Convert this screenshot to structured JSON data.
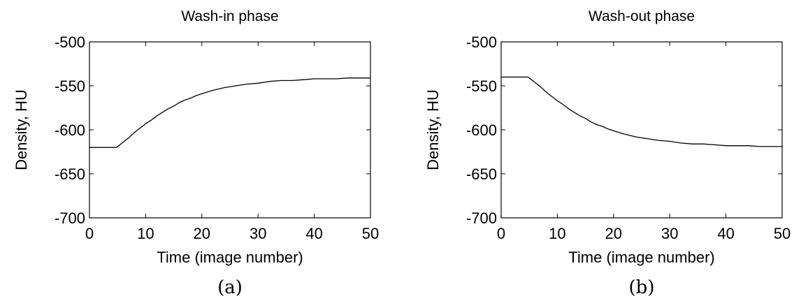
{
  "chart_data": [
    {
      "type": "line",
      "title": "Wash-in phase",
      "xlabel": "Time (image number)",
      "ylabel": "Density, HU",
      "caption": "(a)",
      "xlim": [
        0,
        50
      ],
      "ylim": [
        -700,
        -500
      ],
      "xticks": [
        "0",
        "10",
        "20",
        "30",
        "40",
        "50"
      ],
      "yticks": [
        "-500",
        "-550",
        "-600",
        "-650",
        "-700"
      ],
      "grid": false,
      "series": [
        {
          "x": [
            0,
            4.8,
            6,
            7,
            8,
            9,
            10,
            11,
            12,
            13,
            14,
            15,
            16,
            17,
            18,
            19,
            20,
            22,
            24,
            26,
            28,
            30,
            32,
            34,
            36,
            38,
            40,
            42,
            44,
            46,
            48,
            50
          ],
          "values": [
            -620,
            -620,
            -614,
            -609,
            -603,
            -598,
            -593,
            -589,
            -584,
            -580,
            -576,
            -573,
            -569,
            -566,
            -564,
            -561,
            -559,
            -555,
            -552,
            -550,
            -548,
            -547,
            -545,
            -544,
            -544,
            -543,
            -542,
            -542,
            -542,
            -541,
            -541,
            -541
          ]
        }
      ]
    },
    {
      "type": "line",
      "title": "Wash-out phase",
      "xlabel": "Time (image number)",
      "ylabel": "Density, HU",
      "caption": "(b)",
      "xlim": [
        0,
        50
      ],
      "ylim": [
        -700,
        -500
      ],
      "xticks": [
        "0",
        "10",
        "20",
        "30",
        "40",
        "50"
      ],
      "yticks": [
        "-500",
        "-550",
        "-600",
        "-650",
        "-700"
      ],
      "grid": false,
      "series": [
        {
          "x": [
            0,
            4.8,
            6,
            7,
            8,
            9,
            10,
            11,
            12,
            13,
            14,
            15,
            16,
            17,
            18,
            19,
            20,
            22,
            24,
            26,
            28,
            30,
            32,
            34,
            36,
            38,
            40,
            42,
            44,
            46,
            48,
            50
          ],
          "values": [
            -540,
            -540,
            -546,
            -551,
            -557,
            -562,
            -567,
            -571,
            -576,
            -580,
            -584,
            -587,
            -591,
            -594,
            -596,
            -599,
            -601,
            -605,
            -608,
            -610,
            -612,
            -613,
            -615,
            -616,
            -616,
            -617,
            -618,
            -618,
            -618,
            -619,
            -619,
            -619
          ]
        }
      ]
    }
  ]
}
